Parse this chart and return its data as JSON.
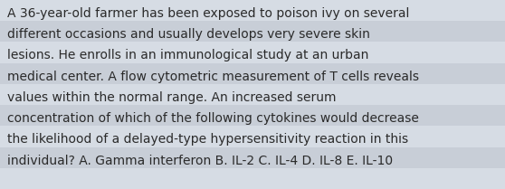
{
  "text_lines": [
    "A 36-year-old farmer has been exposed to poison ivy on several",
    "different occasions and usually develops very severe skin",
    "lesions. He enrolls in an immunological study at an urban",
    "medical center. A flow cytometric measurement of T cells reveals",
    "values within the normal range. An increased serum",
    "concentration of which of the following cytokines would decrease",
    "the likelihood of a delayed-type hypersensitivity reaction in this",
    "individual? A. Gamma interferon B. IL-2 C. IL-4 D. IL-8 E. IL-10"
  ],
  "background_color": "#cdd3db",
  "stripe_color_light": "#d6dce4",
  "stripe_color_dark": "#c8ced7",
  "text_color": "#2a2a2a",
  "font_size": 10.0,
  "fig_width": 5.58,
  "fig_height": 2.09,
  "dpi": 100
}
